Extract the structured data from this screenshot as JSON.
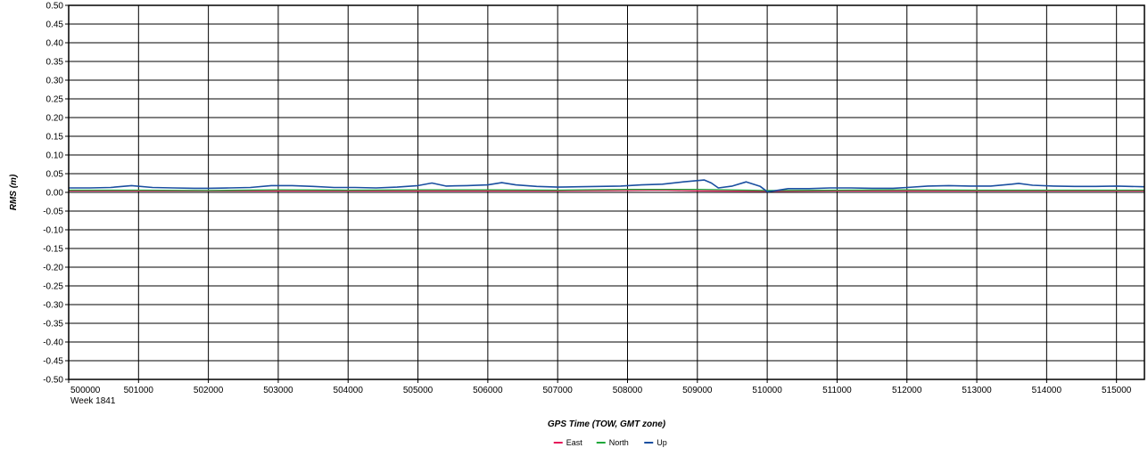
{
  "chart_data": {
    "type": "line",
    "xlabel": "GPS Time (TOW, GMT zone)",
    "ylabel": "RMS (m)",
    "x_sublabel": "Week 1841",
    "xlim": [
      500000,
      515400
    ],
    "ylim": [
      -0.5,
      0.5
    ],
    "x_ticks": [
      500000,
      501000,
      502000,
      503000,
      504000,
      505000,
      506000,
      507000,
      508000,
      509000,
      510000,
      511000,
      512000,
      513000,
      514000,
      515000
    ],
    "y_ticks": [
      0.5,
      0.45,
      0.4,
      0.35,
      0.3,
      0.25,
      0.2,
      0.15,
      0.1,
      0.05,
      0.0,
      -0.05,
      -0.1,
      -0.15,
      -0.2,
      -0.25,
      -0.3,
      -0.35,
      -0.4,
      -0.45,
      -0.5
    ],
    "y_tick_labels": [
      "0.50",
      "0.45",
      "0.40",
      "0.35",
      "0.30",
      "0.25",
      "0.20",
      "0.15",
      "0.10",
      "0.05",
      "0.00",
      "-0.05",
      "-0.10",
      "-0.15",
      "-0.20",
      "-0.25",
      "-0.30",
      "-0.35",
      "-0.40",
      "-0.45",
      "-0.50"
    ],
    "grid": true,
    "legend_position": "bottom-center",
    "series": [
      {
        "name": "East",
        "color": "#e6195a",
        "x": [
          500000,
          501000,
          502000,
          503000,
          504000,
          505000,
          506000,
          507000,
          508000,
          508500,
          509000,
          510000,
          511000,
          512000,
          513000,
          514000,
          515400
        ],
        "y": [
          0.004,
          0.004,
          0.004,
          0.004,
          0.004,
          0.004,
          0.004,
          0.004,
          0.005,
          0.006,
          0.004,
          0.003,
          0.004,
          0.004,
          0.004,
          0.004,
          0.004
        ]
      },
      {
        "name": "North",
        "color": "#1fa83a",
        "x": [
          500000,
          501000,
          502000,
          503000,
          504000,
          505000,
          506000,
          507000,
          508000,
          509000,
          510000,
          511000,
          512000,
          513000,
          514000,
          515400
        ],
        "y": [
          0.006,
          0.006,
          0.005,
          0.007,
          0.006,
          0.007,
          0.007,
          0.006,
          0.008,
          0.008,
          0.005,
          0.006,
          0.007,
          0.006,
          0.006,
          0.006
        ]
      },
      {
        "name": "Up",
        "color": "#1a4fa0",
        "x": [
          500000,
          500300,
          500600,
          500900,
          501200,
          501500,
          501800,
          502000,
          502300,
          502600,
          502900,
          503200,
          503500,
          503800,
          504100,
          504400,
          504700,
          505000,
          505200,
          505400,
          505700,
          506000,
          506200,
          506400,
          506700,
          507000,
          507300,
          507600,
          507900,
          508200,
          508500,
          508800,
          509100,
          509200,
          509300,
          509500,
          509700,
          509900,
          510000,
          510100,
          510300,
          510600,
          510900,
          511200,
          511500,
          511800,
          512000,
          512300,
          512600,
          512900,
          513200,
          513500,
          513600,
          513800,
          514100,
          514400,
          514700,
          515000,
          515400
        ],
        "y": [
          0.012,
          0.012,
          0.013,
          0.018,
          0.013,
          0.012,
          0.011,
          0.011,
          0.012,
          0.013,
          0.018,
          0.018,
          0.016,
          0.013,
          0.013,
          0.012,
          0.014,
          0.018,
          0.025,
          0.017,
          0.018,
          0.02,
          0.026,
          0.02,
          0.016,
          0.014,
          0.015,
          0.016,
          0.017,
          0.02,
          0.022,
          0.028,
          0.033,
          0.025,
          0.012,
          0.017,
          0.028,
          0.016,
          0.002,
          0.004,
          0.01,
          0.01,
          0.012,
          0.012,
          0.011,
          0.011,
          0.013,
          0.017,
          0.018,
          0.017,
          0.017,
          0.022,
          0.024,
          0.019,
          0.017,
          0.016,
          0.016,
          0.017,
          0.015
        ]
      }
    ]
  }
}
